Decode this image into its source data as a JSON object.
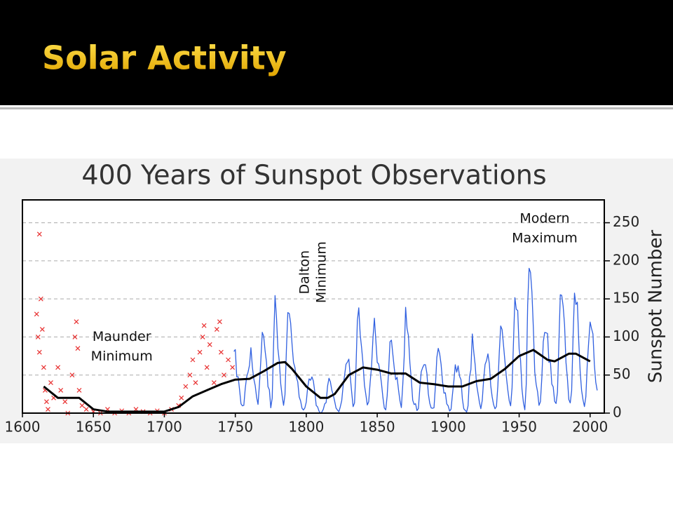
{
  "slide": {
    "title": "Solar Activity"
  },
  "chart_data": {
    "type": "line",
    "title": "400 Years of Sunspot Observations",
    "y_axis_label": "Sunspot Number",
    "xlim": [
      1600,
      2010
    ],
    "xticks": [
      1600,
      1650,
      1700,
      1750,
      1800,
      1850,
      1900,
      1950,
      2000
    ],
    "ylim": [
      0,
      280
    ],
    "yticks": [
      0,
      50,
      100,
      150,
      200,
      250
    ],
    "grid": true,
    "annotations": [
      {
        "lines": [
          "Maunder",
          "Minimum"
        ],
        "x": 1670,
        "y": 100
      },
      {
        "lines": [
          "Dalton",
          "Minimum"
        ],
        "x": 1805,
        "y": 185,
        "rotated": true
      },
      {
        "lines": [
          "Modern",
          "Maximum"
        ],
        "x": 1968,
        "y": 255
      }
    ],
    "series": [
      {
        "mode": "markers",
        "color": "#e83030",
        "x": [
          1610,
          1611,
          1612,
          1612,
          1613,
          1614,
          1615,
          1616,
          1617,
          1618,
          1620,
          1622,
          1625,
          1627,
          1630,
          1632,
          1635,
          1637,
          1638,
          1639,
          1640,
          1642,
          1645,
          1650,
          1655,
          1660,
          1665,
          1670,
          1675,
          1680,
          1685,
          1690,
          1695,
          1700,
          1705,
          1710,
          1712,
          1715,
          1718,
          1720,
          1722,
          1725,
          1727,
          1728,
          1730,
          1732,
          1735,
          1737,
          1739,
          1740,
          1742,
          1745,
          1748
        ],
        "values": [
          130,
          100,
          235,
          80,
          150,
          110,
          60,
          30,
          15,
          5,
          40,
          20,
          60,
          30,
          15,
          0,
          50,
          100,
          120,
          85,
          30,
          10,
          5,
          2,
          0,
          5,
          0,
          3,
          0,
          5,
          2,
          0,
          3,
          0,
          5,
          10,
          20,
          35,
          50,
          70,
          40,
          80,
          100,
          115,
          60,
          90,
          40,
          110,
          120,
          80,
          50,
          70,
          60
        ]
      },
      {
        "mode": "line",
        "color": "#3060e0",
        "x": [
          1749,
          1750,
          1751,
          1752,
          1753,
          1754,
          1755,
          1756,
          1757,
          1758,
          1759,
          1760,
          1761,
          1762,
          1763,
          1764,
          1765,
          1766,
          1767,
          1768,
          1769,
          1770,
          1771,
          1772,
          1773,
          1774,
          1775,
          1776,
          1777,
          1778,
          1779,
          1780,
          1781,
          1782,
          1783,
          1784,
          1785,
          1786,
          1787,
          1788,
          1789,
          1790,
          1791,
          1792,
          1793,
          1794,
          1795,
          1796,
          1797,
          1798,
          1799,
          1800,
          1801,
          1802,
          1803,
          1804,
          1805,
          1806,
          1807,
          1808,
          1809,
          1810,
          1811,
          1812,
          1813,
          1814,
          1815,
          1816,
          1817,
          1818,
          1819,
          1820,
          1821,
          1822,
          1823,
          1824,
          1825,
          1826,
          1827,
          1828,
          1829,
          1830,
          1831,
          1832,
          1833,
          1834,
          1835,
          1836,
          1837,
          1838,
          1839,
          1840,
          1841,
          1842,
          1843,
          1844,
          1845,
          1846,
          1847,
          1848,
          1849,
          1850,
          1851,
          1852,
          1853,
          1854,
          1855,
          1856,
          1857,
          1858,
          1859,
          1860,
          1861,
          1862,
          1863,
          1864,
          1865,
          1866,
          1867,
          1868,
          1869,
          1870,
          1871,
          1872,
          1873,
          1874,
          1875,
          1876,
          1877,
          1878,
          1879,
          1880,
          1881,
          1882,
          1883,
          1884,
          1885,
          1886,
          1887,
          1888,
          1889,
          1890,
          1891,
          1892,
          1893,
          1894,
          1895,
          1896,
          1897,
          1898,
          1899,
          1900,
          1901,
          1902,
          1903,
          1904,
          1905,
          1906,
          1907,
          1908,
          1909,
          1910,
          1911,
          1912,
          1913,
          1914,
          1915,
          1916,
          1917,
          1918,
          1919,
          1920,
          1921,
          1922,
          1923,
          1924,
          1925,
          1926,
          1927,
          1928,
          1929,
          1930,
          1931,
          1932,
          1933,
          1934,
          1935,
          1936,
          1937,
          1938,
          1939,
          1940,
          1941,
          1942,
          1943,
          1944,
          1945,
          1946,
          1947,
          1948,
          1949,
          1950,
          1951,
          1952,
          1953,
          1954,
          1955,
          1956,
          1957,
          1958,
          1959,
          1960,
          1961,
          1962,
          1963,
          1964,
          1965,
          1966,
          1967,
          1968,
          1969,
          1970,
          1971,
          1972,
          1973,
          1974,
          1975,
          1976,
          1977,
          1978,
          1979,
          1980,
          1981,
          1982,
          1983,
          1984,
          1985,
          1986,
          1987,
          1988,
          1989,
          1990,
          1991,
          1992,
          1993,
          1994,
          1995,
          1996,
          1997,
          1998,
          1999,
          2000,
          2001,
          2002,
          2003,
          2004,
          2005
        ],
        "values": [
          80.9,
          83.4,
          47.7,
          47.8,
          30.7,
          12.2,
          9.6,
          10.2,
          32.4,
          47.6,
          54,
          62.9,
          85.9,
          61.2,
          45.1,
          36.4,
          20.9,
          11.4,
          37.8,
          69.8,
          106.1,
          100.8,
          81.6,
          66.5,
          34.8,
          30.6,
          7,
          19.8,
          92.5,
          154.4,
          125.9,
          84.8,
          68.1,
          38.5,
          22.8,
          10.2,
          24.1,
          82.9,
          132,
          130.9,
          118.1,
          89.9,
          66.6,
          60,
          46.9,
          41,
          21.3,
          16,
          6.4,
          4.1,
          6.8,
          14.5,
          34,
          45,
          43.1,
          47.5,
          42.2,
          28.1,
          10.1,
          8.1,
          2.5,
          0,
          1.4,
          5,
          12.2,
          13.9,
          35.4,
          45.8,
          41.1,
          30.1,
          23.9,
          15.6,
          6.6,
          4,
          1.8,
          8.5,
          16.6,
          36.3,
          49.6,
          64.2,
          67,
          70.9,
          47.8,
          27.5,
          8.5,
          13.2,
          56.9,
          121.5,
          138.3,
          103.2,
          85.7,
          64.6,
          36.7,
          24.2,
          10.7,
          15,
          40.1,
          61.5,
          98.5,
          124.7,
          96.3,
          66.6,
          64.5,
          54.1,
          39,
          20.6,
          6.7,
          4.3,
          22.7,
          54.8,
          93.8,
          95.8,
          77.2,
          59.1,
          44,
          47,
          30.5,
          16.3,
          7.3,
          37.6,
          74,
          139,
          111.2,
          101.6,
          66.2,
          44.7,
          17,
          11.3,
          12.4,
          3.4,
          6,
          32.3,
          54.3,
          59.7,
          63.7,
          63.5,
          52.2,
          25.4,
          13.1,
          6.8,
          6.3,
          7.1,
          35.6,
          73,
          85.1,
          78,
          64,
          41.8,
          26.2,
          26.7,
          12.1,
          9.5,
          2.7,
          5,
          24.4,
          42,
          63.5,
          53.8,
          62,
          48.5,
          43.9,
          18.6,
          5.7,
          3.6,
          1.4,
          9.6,
          47.4,
          57.1,
          103.9,
          80.6,
          63.6,
          37.6,
          26.1,
          14.2,
          5.8,
          16.7,
          44.3,
          63.9,
          69,
          77.8,
          64.9,
          35.7,
          21.2,
          11.1,
          5.7,
          8.7,
          36.1,
          79.7,
          114.4,
          109.6,
          88.8,
          67.8,
          47.5,
          30.6,
          16.3,
          9.6,
          33.2,
          92.6,
          151.6,
          136.3,
          134.7,
          83.9,
          69.4,
          31.5,
          13.9,
          4.4,
          38,
          141.7,
          190.2,
          184.8,
          159,
          112.3,
          53.9,
          37.6,
          27.9,
          10.2,
          15.1,
          47,
          93.8,
          105.9,
          105.5,
          104.5,
          66.6,
          68.9,
          38,
          34.5,
          15.5,
          12.6,
          27.5,
          92.5,
          155.4,
          154.6,
          140.4,
          115.9,
          66.6,
          45.9,
          17.9,
          13.4,
          29.4,
          100.2,
          157.6,
          142.6,
          145.7,
          94.3,
          54.6,
          29.9,
          17.5,
          8.6,
          21.5,
          64.3,
          93.3,
          119.6,
          111,
          104,
          63.7,
          40.4,
          29.8
        ]
      },
      {
        "mode": "line",
        "color": "#000000",
        "x": [
          1615,
          1625,
          1640,
          1650,
          1660,
          1700,
          1710,
          1720,
          1730,
          1740,
          1750,
          1760,
          1770,
          1780,
          1785,
          1790,
          1800,
          1810,
          1815,
          1820,
          1830,
          1840,
          1850,
          1860,
          1870,
          1880,
          1890,
          1900,
          1910,
          1920,
          1930,
          1940,
          1950,
          1960,
          1970,
          1975,
          1985,
          1990,
          2000
        ],
        "values": [
          35,
          20,
          20,
          5,
          2,
          2,
          8,
          22,
          30,
          38,
          44,
          45,
          55,
          66,
          67,
          58,
          35,
          20,
          20,
          25,
          50,
          60,
          57,
          52,
          52,
          40,
          38,
          35,
          35,
          42,
          45,
          58,
          75,
          83,
          70,
          68,
          78,
          78,
          68
        ]
      }
    ]
  }
}
